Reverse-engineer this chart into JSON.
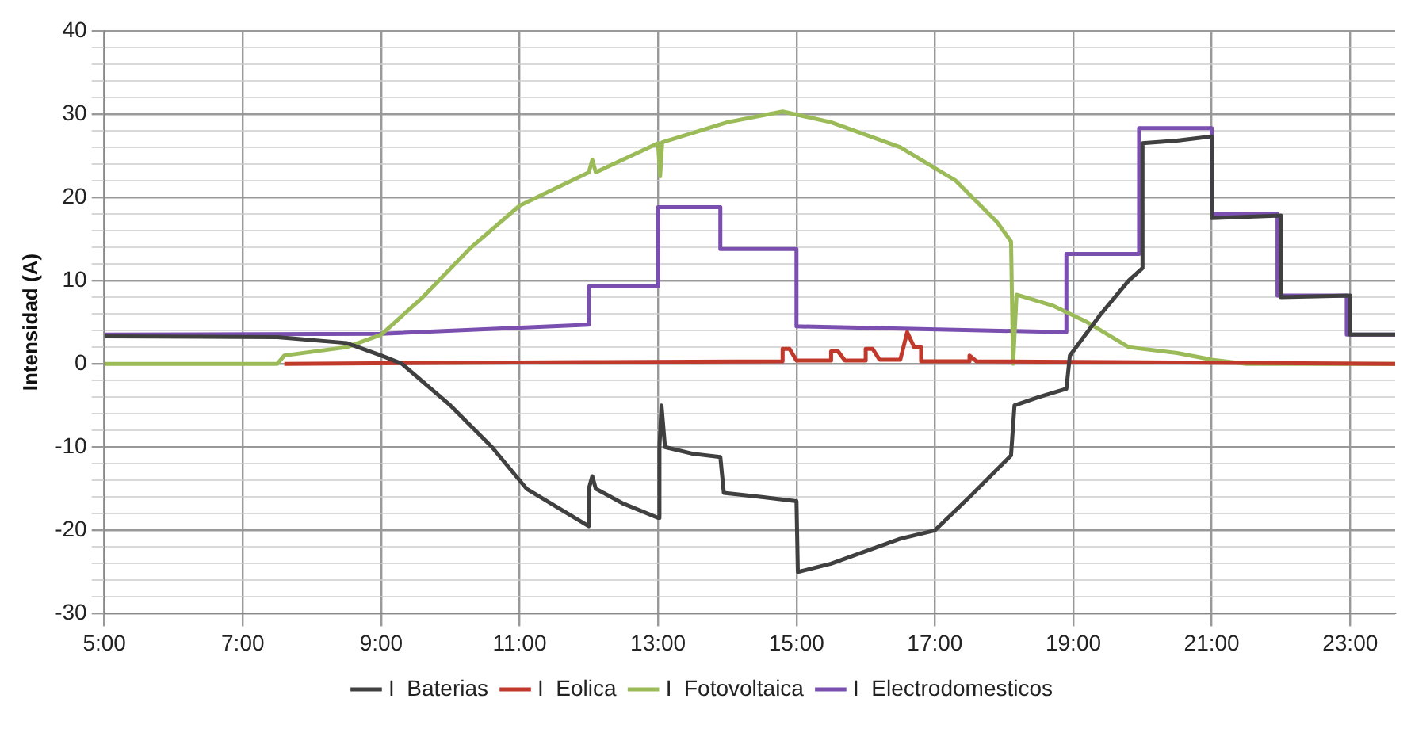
{
  "chart_data": {
    "type": "line",
    "ylabel": "Intensidad (A)",
    "xlim": [
      5,
      23.65
    ],
    "xticks": [
      {
        "value": 5,
        "label": "5:00"
      },
      {
        "value": 7,
        "label": "7:00"
      },
      {
        "value": 9,
        "label": "9:00"
      },
      {
        "value": 11,
        "label": "11:00"
      },
      {
        "value": 13,
        "label": "13:00"
      },
      {
        "value": 15,
        "label": "15:00"
      },
      {
        "value": 17,
        "label": "17:00"
      },
      {
        "value": 19,
        "label": "19:00"
      },
      {
        "value": 21,
        "label": "21:00"
      },
      {
        "value": 23,
        "label": "23:00"
      }
    ],
    "ylim": [
      -30,
      40
    ],
    "yticks": [
      -30,
      {
        "value": -28,
        "label": null
      },
      {
        "value": -26,
        "label": null
      },
      {
        "value": -24,
        "label": null
      },
      {
        "value": -22,
        "label": null
      },
      -20,
      {
        "value": -18,
        "label": null
      },
      {
        "value": -16,
        "label": null
      },
      {
        "value": -14,
        "label": null
      },
      {
        "value": -12,
        "label": null
      },
      -10,
      {
        "value": -8,
        "label": null
      },
      {
        "value": -6,
        "label": null
      },
      {
        "value": -4,
        "label": null
      },
      {
        "value": -2,
        "label": null
      },
      0,
      {
        "value": 2,
        "label": null
      },
      {
        "value": 4,
        "label": null
      },
      {
        "value": 6,
        "label": null
      },
      {
        "value": 8,
        "label": null
      },
      10,
      {
        "value": 12,
        "label": null
      },
      {
        "value": 14,
        "label": null
      },
      {
        "value": 16,
        "label": null
      },
      {
        "value": 18,
        "label": null
      },
      20,
      {
        "value": 22,
        "label": null
      },
      {
        "value": 24,
        "label": null
      },
      {
        "value": 26,
        "label": null
      },
      {
        "value": 28,
        "label": null
      },
      30,
      {
        "value": 32,
        "label": null
      },
      {
        "value": 34,
        "label": null
      },
      {
        "value": 36,
        "label": null
      },
      {
        "value": 38,
        "label": null
      },
      40
    ],
    "grid": true,
    "legend": "bottom",
    "marker": "none",
    "line_style": "solid",
    "series": [
      {
        "name": "I  Baterias",
        "color": "#404040",
        "x": [
          5,
          7.5,
          8.5,
          9,
          9.3,
          10,
          10.6,
          11.1,
          11.6,
          12,
          12,
          12.05,
          12.1,
          12.5,
          13,
          13.02,
          13.05,
          13.1,
          13.5,
          13.9,
          13.95,
          14.5,
          15,
          15.02,
          15.5,
          16,
          16.5,
          17,
          17.5,
          18.1,
          18.15,
          18.5,
          18.9,
          18.95,
          19.4,
          19.8,
          20,
          20,
          20.5,
          21,
          21,
          22,
          22,
          23,
          23,
          23.65
        ],
        "values": [
          3.3,
          3.2,
          2.5,
          1,
          0,
          -5,
          -10,
          -15,
          -17.5,
          -19.5,
          -15,
          -13.5,
          -15,
          -16.8,
          -18.5,
          -10,
          -5,
          -10,
          -10.8,
          -11.2,
          -15.5,
          -16,
          -16.5,
          -25,
          -24,
          -22.5,
          -21,
          -20,
          -16,
          -11,
          -5,
          -4,
          -3,
          1,
          6,
          10,
          11.5,
          26.5,
          26.8,
          27.3,
          17.5,
          17.8,
          8,
          8.2,
          3.5,
          3.5
        ]
      },
      {
        "name": "I  Eolica",
        "color": "#c0392b",
        "x": [
          7.6,
          12,
          14.8,
          14.8,
          14.9,
          15,
          15.5,
          15.5,
          15.6,
          15.7,
          16,
          16,
          16.1,
          16.2,
          16.5,
          16.6,
          16.6,
          16.7,
          16.8,
          16.8,
          17.5,
          17.5,
          17.6,
          23.65
        ],
        "values": [
          0,
          0.2,
          0.3,
          1.8,
          1.8,
          0.4,
          0.4,
          1.5,
          1.5,
          0.4,
          0.4,
          1.8,
          1.8,
          0.5,
          0.5,
          3.8,
          3.8,
          2,
          2,
          0.3,
          0.3,
          1,
          0.3,
          0
        ]
      },
      {
        "name": "I  Fotovoltaica",
        "color": "#9bbb59",
        "x": [
          5,
          7.5,
          7.6,
          8.5,
          9,
          9.6,
          10.3,
          11,
          12,
          12.05,
          12.1,
          13,
          13.03,
          13.06,
          14,
          14.8,
          15.5,
          16.5,
          17.3,
          17.9,
          18.1,
          18.13,
          18.18,
          18.7,
          19.2,
          19.8,
          20.5,
          21,
          21.5,
          23.65
        ],
        "values": [
          0,
          0,
          1,
          2,
          3.5,
          8,
          14,
          19,
          23,
          24.5,
          23,
          26.5,
          22.5,
          26.6,
          29,
          30.3,
          29,
          26,
          22,
          17,
          14.7,
          0,
          8.3,
          7,
          5,
          2,
          1.3,
          0.5,
          0,
          0
        ]
      },
      {
        "name": "I  Electrodomesticos",
        "color": "#7a4fb0",
        "x": [
          5,
          9,
          12,
          12,
          13,
          13,
          13.9,
          13.9,
          15,
          15,
          18.9,
          18.9,
          19.95,
          19.95,
          21,
          21,
          21.95,
          21.95,
          22.95,
          22.95,
          23.65
        ],
        "values": [
          3.5,
          3.6,
          4.7,
          9.3,
          9.3,
          18.8,
          18.8,
          13.8,
          13.8,
          4.5,
          3.8,
          13.2,
          13.2,
          28.3,
          28.3,
          18,
          18,
          8.2,
          8.2,
          3.5,
          3.5
        ]
      }
    ]
  }
}
